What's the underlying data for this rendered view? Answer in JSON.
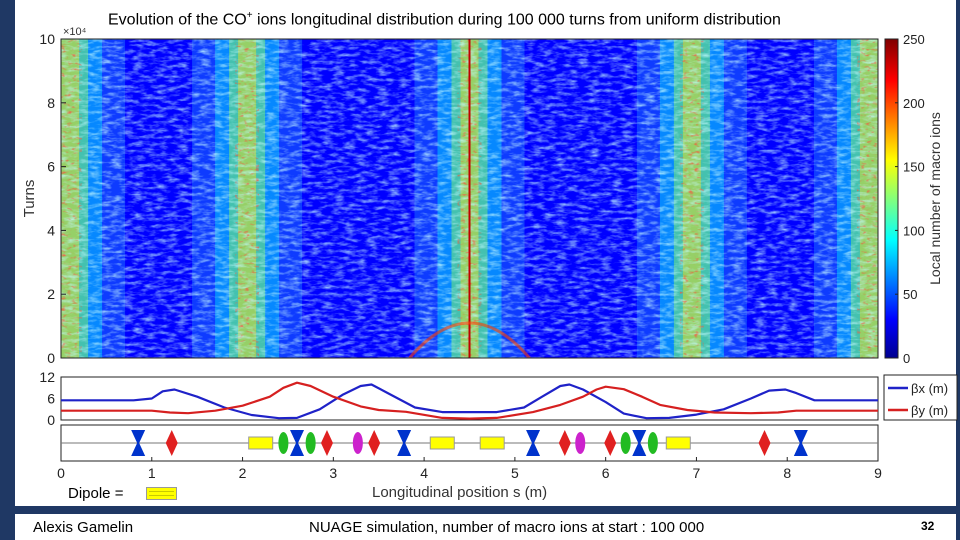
{
  "slide": {
    "title_main": "Evolution of the CO",
    "title_sup": "+",
    "title_rest": " ions longitudinal distribution during 100 000 turns from uniform distribution",
    "footer_author": "Alexis Gamelin",
    "footer_note": "NUAGE simulation, number of macro ions at start : 100 000",
    "page_number": "32",
    "dipole_label": "Dipole = "
  },
  "chart_data": [
    {
      "type": "heatmap",
      "title": "Evolution of the CO+ ions longitudinal distribution during 100 000 turns from uniform distribution",
      "ylabel": "Turns",
      "ylim": [
        0,
        100000
      ],
      "y_ticks": [
        "0",
        "2",
        "4",
        "6",
        "8",
        "10"
      ],
      "y_exponent": "×10⁴",
      "xlim": [
        0,
        9
      ],
      "colorbar_label": "Local number of macro ions",
      "colorbar_range": [
        0,
        250
      ],
      "colorbar_ticks": [
        "0",
        "50",
        "100",
        "150",
        "200",
        "250"
      ],
      "high_density_bands_s": [
        0.1,
        2.05,
        4.5,
        6.95,
        8.9
      ],
      "colormap": [
        "#00008f",
        "#0000ff",
        "#00ffff",
        "#ffff00",
        "#ff0000",
        "#800000"
      ]
    },
    {
      "type": "line",
      "ylim": [
        0,
        12
      ],
      "y_ticks": [
        "0",
        "6",
        "12"
      ],
      "xlabel": "Longitudinal position s (m)",
      "x_ticks": [
        "0",
        "1",
        "2",
        "3",
        "4",
        "5",
        "6",
        "7",
        "8",
        "9"
      ],
      "xlim": [
        0,
        9
      ],
      "legend": [
        "βx (m)",
        "βy (m)"
      ],
      "series": [
        {
          "name": "βx (m)",
          "color": "#1f22c8",
          "x": [
            0,
            0.8,
            1.0,
            1.12,
            1.25,
            1.5,
            1.8,
            2.1,
            2.4,
            2.6,
            2.85,
            3.1,
            3.3,
            3.42,
            3.6,
            3.9,
            4.2,
            4.5,
            4.8,
            5.1,
            5.3,
            5.5,
            5.6,
            5.75,
            6.0,
            6.2,
            6.45,
            6.7,
            7.0,
            7.3,
            7.6,
            7.8,
            7.98,
            8.1,
            8.3,
            9
          ],
          "y": [
            5.5,
            5.5,
            6,
            8,
            8.5,
            6.5,
            3.5,
            1.4,
            0.5,
            0.6,
            3,
            7,
            9.5,
            9.9,
            7.5,
            3.5,
            2.2,
            2.2,
            2.2,
            3.5,
            6.5,
            9.5,
            9.9,
            8.5,
            5,
            1.8,
            0.5,
            0.6,
            1.5,
            3,
            6,
            8.2,
            8.5,
            7.5,
            5.5,
            5.5
          ]
        },
        {
          "name": "βy (m)",
          "color": "#d62020",
          "x": [
            0,
            0.8,
            1.0,
            1.2,
            1.4,
            1.7,
            2.0,
            2.3,
            2.45,
            2.6,
            2.75,
            3.0,
            3.3,
            3.5,
            3.8,
            4.2,
            4.5,
            4.8,
            5.2,
            5.5,
            5.75,
            5.9,
            6.0,
            6.2,
            6.4,
            6.6,
            6.9,
            7.2,
            7.6,
            7.9,
            8.1,
            8.5,
            9
          ],
          "y": [
            2.6,
            2.6,
            2.6,
            2.1,
            1.9,
            2.6,
            4,
            6.5,
            9,
            10.4,
            9.5,
            6.5,
            3.8,
            2.8,
            2.3,
            0.6,
            0.4,
            0.6,
            2.2,
            4.2,
            6.5,
            8.5,
            9.3,
            8.6,
            6.5,
            4.2,
            2.8,
            2.1,
            1.9,
            2.1,
            2.6,
            2.6,
            2.6
          ]
        }
      ]
    },
    {
      "type": "lattice",
      "elements": [
        {
          "kind": "quad-focus",
          "s": 0.85,
          "color": "#0033cc"
        },
        {
          "kind": "quad-defocus",
          "s": 1.22,
          "color": "#e02020"
        },
        {
          "kind": "dipole",
          "s": 2.2,
          "color": "#ffff00"
        },
        {
          "kind": "sextupole",
          "s": 2.45,
          "color": "#22bb22"
        },
        {
          "kind": "quad-focus",
          "s": 2.6,
          "color": "#0033cc"
        },
        {
          "kind": "sextupole",
          "s": 2.75,
          "color": "#22bb22"
        },
        {
          "kind": "quad-defocus",
          "s": 2.93,
          "color": "#e02020"
        },
        {
          "kind": "octupole",
          "s": 3.27,
          "color": "#cc22cc"
        },
        {
          "kind": "quad-defocus",
          "s": 3.45,
          "color": "#e02020"
        },
        {
          "kind": "quad-focus",
          "s": 3.78,
          "color": "#0033cc"
        },
        {
          "kind": "dipole",
          "s": 4.2,
          "color": "#ffff00"
        },
        {
          "kind": "dipole",
          "s": 4.75,
          "color": "#ffff00"
        },
        {
          "kind": "quad-focus",
          "s": 5.2,
          "color": "#0033cc"
        },
        {
          "kind": "quad-defocus",
          "s": 5.55,
          "color": "#e02020"
        },
        {
          "kind": "octupole",
          "s": 5.72,
          "color": "#cc22cc"
        },
        {
          "kind": "quad-defocus",
          "s": 6.05,
          "color": "#e02020"
        },
        {
          "kind": "sextupole",
          "s": 6.22,
          "color": "#22bb22"
        },
        {
          "kind": "quad-focus",
          "s": 6.37,
          "color": "#0033cc"
        },
        {
          "kind": "sextupole",
          "s": 6.52,
          "color": "#22bb22"
        },
        {
          "kind": "dipole",
          "s": 6.8,
          "color": "#ffff00"
        },
        {
          "kind": "quad-defocus",
          "s": 7.75,
          "color": "#e02020"
        },
        {
          "kind": "quad-focus",
          "s": 8.15,
          "color": "#0033cc"
        }
      ]
    }
  ]
}
